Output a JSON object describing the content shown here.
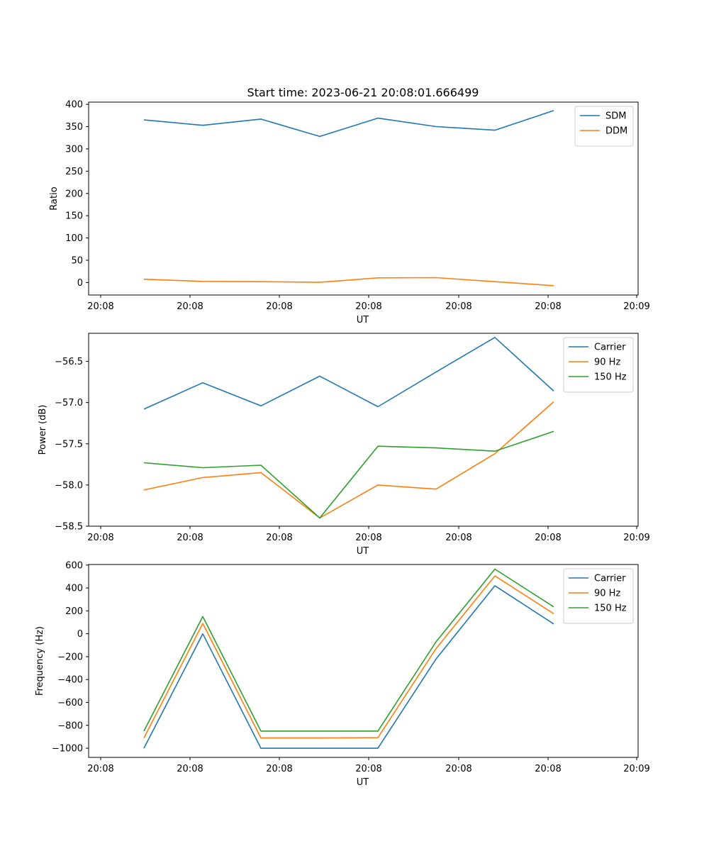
{
  "title": "Start time: 2023-06-21 20:08:01.666499",
  "colors": {
    "blue": "#1f77b4",
    "orange": "#ff7f0e",
    "green": "#2ca02c"
  },
  "chart_data": [
    {
      "type": "line",
      "xlabel": "UT",
      "ylabel": "Ratio",
      "x_tick_labels": [
        "20:08",
        "20:08",
        "20:08",
        "20:08",
        "20:08",
        "20:08",
        "20:09"
      ],
      "yticks": [
        0,
        50,
        100,
        150,
        200,
        250,
        300,
        350,
        400
      ],
      "ylim": [
        -28,
        405
      ],
      "grid": false,
      "legend": "upper right",
      "series": [
        {
          "name": "SDM",
          "color": "#1f77b4",
          "values": [
            365,
            353,
            367,
            328,
            369,
            350,
            342,
            386
          ]
        },
        {
          "name": "DDM",
          "color": "#ff7f0e",
          "values": [
            7.5,
            2.5,
            2,
            0.5,
            10.5,
            11,
            2,
            -7
          ]
        }
      ]
    },
    {
      "type": "line",
      "xlabel": "UT",
      "ylabel": "Power (dB)",
      "x_tick_labels": [
        "20:08",
        "20:08",
        "20:08",
        "20:08",
        "20:08",
        "20:08",
        "20:09"
      ],
      "yticks": [
        -58.5,
        -58.0,
        -57.5,
        -57.0,
        -56.5
      ],
      "ytick_labels": [
        "−58.5",
        "−58.0",
        "−57.5",
        "−57.0",
        "−56.5"
      ],
      "ylim": [
        -58.5,
        -56.16
      ],
      "grid": false,
      "legend": "upper right",
      "series": [
        {
          "name": "Carrier",
          "color": "#1f77b4",
          "values": [
            -57.08,
            -56.76,
            -57.04,
            -56.68,
            -57.05,
            -56.63,
            -56.21,
            -56.86
          ]
        },
        {
          "name": "90 Hz",
          "color": "#ff7f0e",
          "values": [
            -58.06,
            -57.91,
            -57.85,
            -58.4,
            -58.0,
            -58.05,
            -57.62,
            -56.99
          ]
        },
        {
          "name": "150 Hz",
          "color": "#2ca02c",
          "values": [
            -57.73,
            -57.79,
            -57.76,
            -58.4,
            -57.53,
            -57.55,
            -57.59,
            -57.35
          ]
        }
      ]
    },
    {
      "type": "line",
      "xlabel": "UT",
      "ylabel": "Frequency (Hz)",
      "x_tick_labels": [
        "20:08",
        "20:08",
        "20:08",
        "20:08",
        "20:08",
        "20:08",
        "20:09"
      ],
      "yticks": [
        -1000,
        -800,
        -600,
        -400,
        -200,
        0,
        200,
        400,
        600
      ],
      "ytick_labels": [
        "−1000",
        "−800",
        "−600",
        "−400",
        "−200",
        "0",
        "200",
        "400",
        "600"
      ],
      "ylim": [
        -1080,
        605
      ],
      "grid": false,
      "legend": "upper right",
      "series": [
        {
          "name": "Carrier",
          "color": "#1f77b4",
          "values": [
            -1000,
            0,
            -1000,
            -1000,
            -1000,
            -220,
            420,
            85
          ]
        },
        {
          "name": "90 Hz",
          "color": "#ff7f0e",
          "values": [
            -910,
            90,
            -910,
            -910,
            -908,
            -130,
            505,
            175
          ]
        },
        {
          "name": "150 Hz",
          "color": "#2ca02c",
          "values": [
            -850,
            150,
            -850,
            -850,
            -850,
            -70,
            565,
            235
          ]
        }
      ]
    }
  ]
}
